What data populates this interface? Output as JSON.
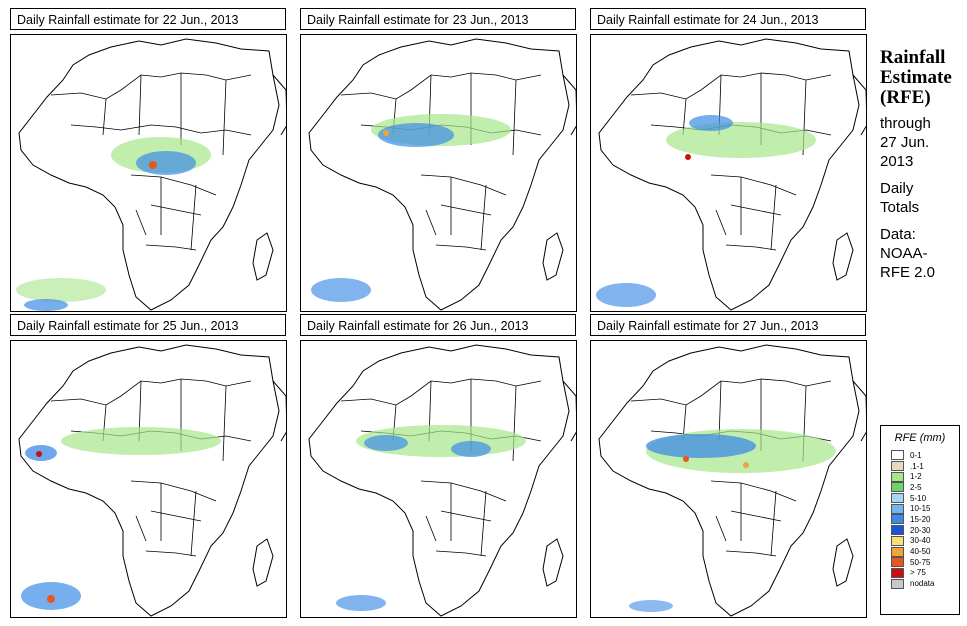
{
  "panels": [
    {
      "title_prefix": "Daily Rainfall estimate for",
      "date": "22 Jun., 2013"
    },
    {
      "title_prefix": "Daily Rainfall estimate for",
      "date": "23 Jun., 2013"
    },
    {
      "title_prefix": "Daily Rainfall estimate for",
      "date": "24 Jun., 2013"
    },
    {
      "title_prefix": "Daily Rainfall estimate for",
      "date": "25 Jun., 2013"
    },
    {
      "title_prefix": "Daily Rainfall estimate for",
      "date": "26 Jun., 2013"
    },
    {
      "title_prefix": "Daily Rainfall estimate for",
      "date": "27 Jun., 2013"
    }
  ],
  "sidebar": {
    "title_line1": "Rainfall",
    "title_line2": "Estimate",
    "title_line3": "(RFE)",
    "through": "through",
    "end_line1": "27 Jun.",
    "end_line2": "2013",
    "totals_line1": "Daily",
    "totals_line2": "Totals",
    "data_label": "Data:",
    "source_line1": "NOAA-",
    "source_line2": "RFE 2.0"
  },
  "legend": {
    "title": "RFE (mm)",
    "items": [
      {
        "label": "0-1",
        "color": "#ffffff"
      },
      {
        "label": ".1-1",
        "color": "#e8d8bc"
      },
      {
        "label": "1-2",
        "color": "#a6e58a"
      },
      {
        "label": "2-5",
        "color": "#6fd26a"
      },
      {
        "label": "5-10",
        "color": "#a7d5f5"
      },
      {
        "label": "10-15",
        "color": "#72b6ee"
      },
      {
        "label": "15-20",
        "color": "#3d8be6"
      },
      {
        "label": "20-30",
        "color": "#1b55d6"
      },
      {
        "label": "30-40",
        "color": "#f6e07a"
      },
      {
        "label": "40-50",
        "color": "#f0a43a"
      },
      {
        "label": "50-75",
        "color": "#e6561e"
      },
      {
        "label": "> 75",
        "color": "#c8100e"
      },
      {
        "label": "nodata",
        "color": "#c8c8c8"
      }
    ]
  }
}
